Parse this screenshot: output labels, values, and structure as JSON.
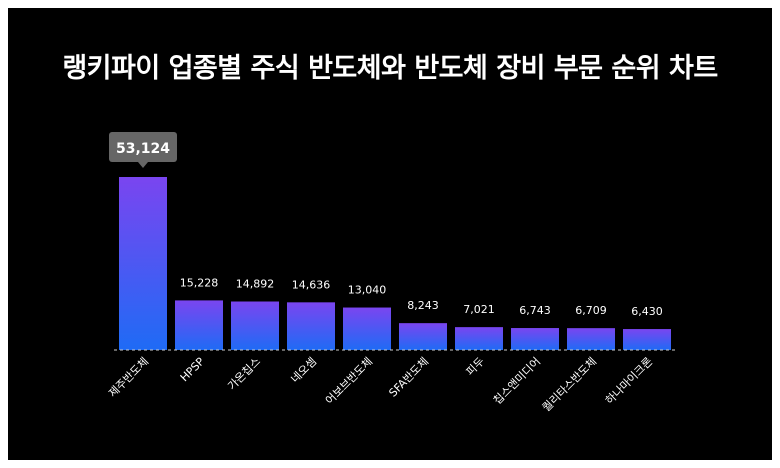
{
  "chart_data": {
    "type": "bar",
    "title": "랭키파이 업종별 주식 반도체와 반도체 장비 부문 순위 차트",
    "categories": [
      "제주반도체",
      "HPSP",
      "가온칩스",
      "네오셈",
      "어보브반도체",
      "SFA반도체",
      "피두",
      "칩스앤미디어",
      "퀄리타스반도체",
      "하나마이크론"
    ],
    "values": [
      53124,
      15228,
      14892,
      14636,
      13040,
      8243,
      7021,
      6743,
      6709,
      6430
    ],
    "value_labels": [
      "53,124",
      "15,228",
      "14,892",
      "14,636",
      "13,040",
      "8,243",
      "7,021",
      "6,743",
      "6,709",
      "6,430"
    ],
    "highlight_index": 0,
    "ylim": [
      0,
      53124
    ],
    "grid": false,
    "legend": "none"
  },
  "colors": {
    "background": "#000000",
    "bar_top": "#7a45f0",
    "bar_bottom": "#1f6bf5",
    "text": "#ffffff",
    "callout": "#666666",
    "baseline": "#cccccc"
  }
}
